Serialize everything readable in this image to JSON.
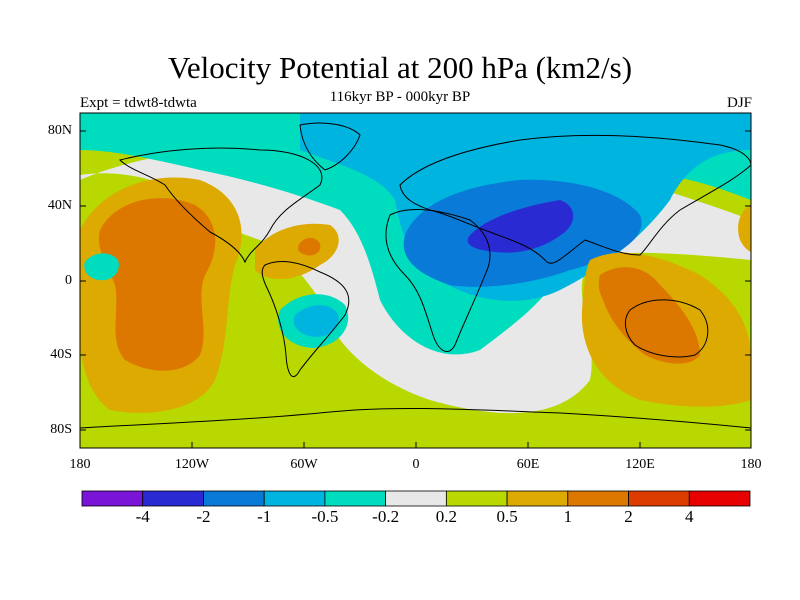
{
  "title": "Velocity Potential at 200 hPa (km2/s)",
  "subtitle": "116kyr BP - 000kyr BP",
  "left_label": "Expt = tdwt8-tdwta",
  "right_label": "DJF",
  "lat_ticks": [
    "80N",
    "40N",
    "0",
    "40S",
    "80S"
  ],
  "lon_ticks": [
    "180",
    "120W",
    "60W",
    "0",
    "60E",
    "120E",
    "180"
  ],
  "colorbar": {
    "labels": [
      "-4",
      "-2",
      "-1",
      "-0.5",
      "-0.2",
      "0.2",
      "0.5",
      "1",
      "2",
      "4"
    ],
    "colors": [
      "#7a14d6",
      "#2a2ad2",
      "#0a7ad8",
      "#00b4e0",
      "#00dcbe",
      "#e8e8e8",
      "#b8d800",
      "#dcaa00",
      "#dc7800",
      "#dc3c00",
      "#e60000"
    ]
  },
  "palette": {
    "strong_neg": "#2a2ad2",
    "mid_neg": "#0a7ad8",
    "light_neg": "#00b4e0",
    "weak_neg": "#00dcbe",
    "neutral": "#e8e8e8",
    "weak_pos": "#b8d800",
    "light_pos": "#dcaa00",
    "mid_pos": "#dc7800",
    "strong_pos": "#dc3c00"
  }
}
